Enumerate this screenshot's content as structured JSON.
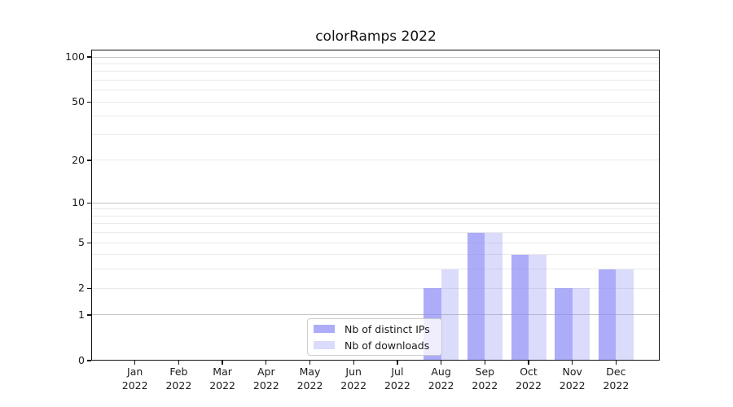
{
  "chart_data": {
    "type": "bar",
    "title": "colorRamps 2022",
    "categories": [
      "Jan",
      "Feb",
      "Mar",
      "Apr",
      "May",
      "Jun",
      "Jul",
      "Aug",
      "Sep",
      "Oct",
      "Nov",
      "Dec"
    ],
    "x_year_label": "2022",
    "series": [
      {
        "name": "Nb of distinct IPs",
        "values": [
          0,
          0,
          0,
          0,
          0,
          0,
          0,
          2,
          6,
          4,
          2,
          3
        ],
        "color": "#8989f6",
        "alpha": 0.7
      },
      {
        "name": "Nb of downloads",
        "values": [
          0,
          0,
          0,
          0,
          0,
          0,
          0,
          3,
          6,
          4,
          2,
          3
        ],
        "color": "#8989f6",
        "alpha": 0.3
      }
    ],
    "xlabel": "",
    "ylabel": "",
    "yscale": "log1p",
    "yticks": [
      0,
      1,
      2,
      5,
      10,
      20,
      50,
      100
    ],
    "ylim": [
      0,
      110
    ],
    "grid": "horizontal, minor and major lines",
    "legend_position": "inside bottom-center"
  },
  "colors": {
    "background": "#ffffff",
    "bar_base": "#8989f6",
    "grid_minor": "#eaeaea",
    "grid_major": "#c4c4c4",
    "axis": "#111111",
    "tick_label": "#1a1a1a",
    "legend_border": "#cccccc"
  }
}
